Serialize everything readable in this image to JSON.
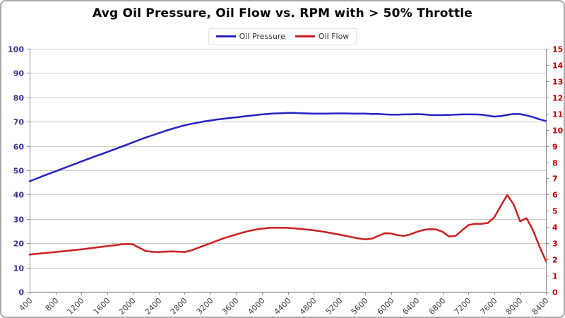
{
  "title": "Avg Oil Pressure, Oil Flow vs. RPM with > 50% Throttle",
  "colors": {
    "oil_pressure_line": "#2323c4",
    "oil_flow_line": "#cc1e1e",
    "left_axis_labels": "#333399",
    "right_axis_labels": "#c00000",
    "x_axis_labels": "#3f3f3f",
    "gridline": "#c9c9c9",
    "axis_line": "#8c8c8c"
  },
  "chart_data": {
    "type": "line",
    "title": "Avg Oil Pressure, Oil Flow vs. RPM with > 50% Throttle",
    "xlabel": "",
    "ylabel": "",
    "grid": true,
    "legend_position": "top",
    "x_ticks": [
      400,
      800,
      1200,
      1600,
      2000,
      2400,
      2800,
      3200,
      3600,
      4000,
      4400,
      4800,
      5200,
      5600,
      6000,
      6400,
      6800,
      7200,
      7600,
      8000,
      8400
    ],
    "left_axis": {
      "min": 0,
      "max": 100,
      "step": 10,
      "label_color": "#333399"
    },
    "right_axis": {
      "min": 0,
      "max": 15,
      "step": 1,
      "label_color": "#c00000"
    },
    "x": [
      400,
      500,
      600,
      700,
      800,
      900,
      1000,
      1100,
      1200,
      1300,
      1400,
      1500,
      1600,
      1700,
      1800,
      1900,
      2000,
      2100,
      2200,
      2300,
      2400,
      2500,
      2600,
      2700,
      2800,
      2900,
      3000,
      3100,
      3200,
      3300,
      3400,
      3500,
      3600,
      3700,
      3800,
      3900,
      4000,
      4100,
      4200,
      4300,
      4400,
      4500,
      4600,
      4700,
      4800,
      4900,
      5000,
      5100,
      5200,
      5300,
      5400,
      5500,
      5600,
      5700,
      5800,
      5900,
      6000,
      6100,
      6200,
      6300,
      6400,
      6500,
      6600,
      6700,
      6800,
      6900,
      7000,
      7100,
      7200,
      7300,
      7400,
      7500,
      7600,
      7700,
      7800,
      7900,
      8000,
      8100,
      8200,
      8300,
      8400
    ],
    "series": [
      {
        "name": "Oil Pressure",
        "axis": "left",
        "color": "#2323c4",
        "values": [
          45.5,
          46.5,
          47.6,
          48.6,
          49.6,
          50.6,
          51.6,
          52.6,
          53.6,
          54.6,
          55.6,
          56.5,
          57.5,
          58.5,
          59.5,
          60.5,
          61.5,
          62.5,
          63.5,
          64.4,
          65.3,
          66.2,
          67.0,
          67.8,
          68.5,
          69.1,
          69.6,
          70.1,
          70.5,
          70.9,
          71.2,
          71.5,
          71.8,
          72.1,
          72.4,
          72.7,
          73.0,
          73.2,
          73.4,
          73.5,
          73.6,
          73.6,
          73.5,
          73.4,
          73.3,
          73.3,
          73.3,
          73.4,
          73.4,
          73.4,
          73.3,
          73.3,
          73.3,
          73.2,
          73.2,
          73.0,
          72.9,
          72.9,
          73.0,
          73.0,
          73.1,
          73.0,
          72.8,
          72.7,
          72.7,
          72.8,
          72.9,
          73.0,
          73.0,
          73.0,
          72.9,
          72.5,
          72.1,
          72.3,
          72.8,
          73.2,
          73.1,
          72.6,
          71.9,
          71.0,
          70.3
        ]
      },
      {
        "name": "Oil Flow",
        "axis": "right",
        "color": "#cc1e1e",
        "values": [
          2.3,
          2.34,
          2.38,
          2.42,
          2.46,
          2.5,
          2.54,
          2.58,
          2.62,
          2.67,
          2.72,
          2.77,
          2.82,
          2.87,
          2.92,
          2.95,
          2.93,
          2.72,
          2.52,
          2.47,
          2.46,
          2.48,
          2.5,
          2.48,
          2.46,
          2.55,
          2.7,
          2.85,
          3.0,
          3.15,
          3.3,
          3.42,
          3.54,
          3.66,
          3.76,
          3.84,
          3.9,
          3.94,
          3.96,
          3.96,
          3.95,
          3.92,
          3.88,
          3.84,
          3.8,
          3.74,
          3.68,
          3.6,
          3.53,
          3.45,
          3.37,
          3.29,
          3.24,
          3.28,
          3.45,
          3.62,
          3.6,
          3.5,
          3.45,
          3.55,
          3.7,
          3.82,
          3.87,
          3.85,
          3.7,
          3.42,
          3.45,
          3.8,
          4.12,
          4.2,
          4.2,
          4.25,
          4.6,
          5.3,
          5.98,
          5.4,
          4.35,
          4.55,
          3.8,
          2.8,
          1.9
        ]
      }
    ]
  }
}
